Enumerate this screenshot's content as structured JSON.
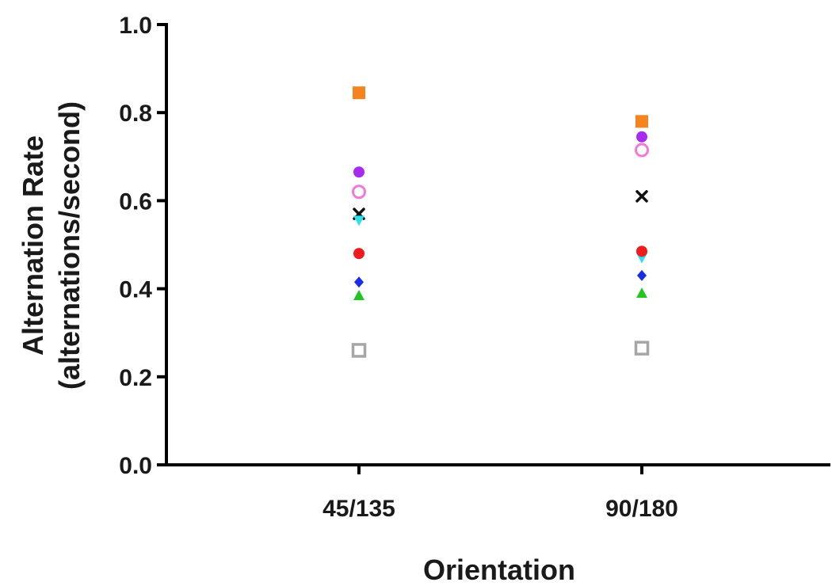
{
  "chart_data": {
    "type": "scatter",
    "title": "",
    "xlabel": "Orientation",
    "ylabel": [
      "Alternation Rate",
      "(alternations/second)"
    ],
    "ylim": [
      0,
      1.0
    ],
    "yticks": [
      "0.0",
      "0.2",
      "0.4",
      "0.6",
      "0.8",
      "1.0"
    ],
    "categories": [
      "45/135",
      "90/180"
    ],
    "grid": false,
    "legend": "none",
    "series": [
      {
        "marker": "filled-square",
        "color": "#f5841f",
        "values": [
          0.845,
          0.78
        ]
      },
      {
        "marker": "filled-circle",
        "color": "#a82cf0",
        "values": [
          0.665,
          0.745
        ]
      },
      {
        "marker": "open-circle",
        "color": "#f07ad8",
        "values": [
          0.62,
          0.715
        ]
      },
      {
        "marker": "cross",
        "color": "#111111",
        "values": [
          0.57,
          0.61
        ]
      },
      {
        "marker": "filled-triangle-down",
        "color": "#2fe0ea",
        "values": [
          0.555,
          0.47
        ]
      },
      {
        "marker": "filled-circle",
        "color": "#ee1c1c",
        "values": [
          0.48,
          0.485
        ]
      },
      {
        "marker": "filled-diamond",
        "color": "#1a2ee8",
        "values": [
          0.415,
          0.43
        ]
      },
      {
        "marker": "filled-triangle-up",
        "color": "#22c522",
        "values": [
          0.385,
          0.39
        ]
      },
      {
        "marker": "open-square",
        "color": "#a6a6a6",
        "values": [
          0.26,
          0.265
        ]
      }
    ]
  }
}
